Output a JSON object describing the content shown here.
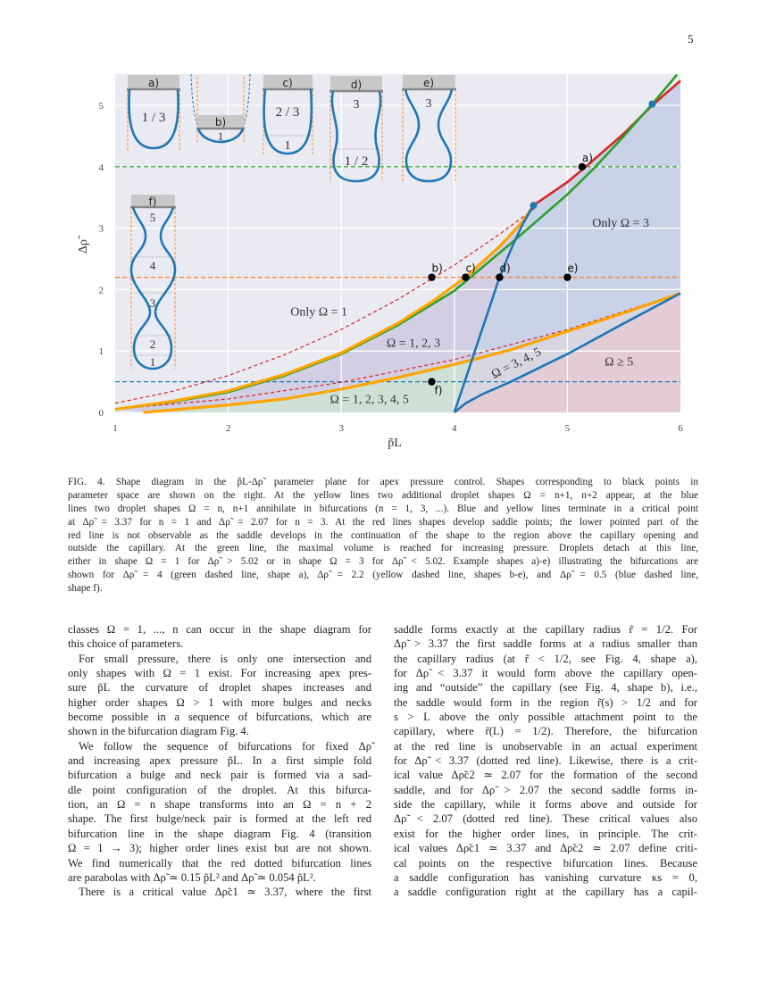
{
  "page_number": "5",
  "figure": {
    "insets": [
      {
        "label": "a)",
        "numbers": [
          "1 / 3"
        ]
      },
      {
        "label": "b)",
        "numbers": [
          "1"
        ]
      },
      {
        "label": "c)",
        "numbers": [
          "2 / 3",
          "1"
        ]
      },
      {
        "label": "d)",
        "numbers": [
          "3",
          "1 / 2"
        ]
      },
      {
        "label": "e)",
        "numbers": [
          "3"
        ]
      },
      {
        "label": "f)",
        "numbers": [
          "5",
          "4",
          "3",
          "2",
          "1"
        ]
      }
    ],
    "chart_data": {
      "type": "line",
      "title": "",
      "xlabel": "p̃L",
      "ylabel": "Δρ̃",
      "xlim": [
        1,
        6
      ],
      "ylim": [
        0,
        5.5
      ],
      "xticks": [
        "1",
        "2",
        "3",
        "4",
        "5",
        "6"
      ],
      "yticks": [
        "0",
        "1",
        "2",
        "3",
        "4",
        "5"
      ],
      "grid": true,
      "background": "#eaeaf2",
      "regions": [
        {
          "name": "only-omega-3",
          "color": "#c9d2e6"
        },
        {
          "name": "omega-ge-5",
          "color": "#e3ccd6"
        },
        {
          "name": "omega-3-4-5",
          "color": "#d8d6e0"
        },
        {
          "name": "omega-1-2-3",
          "color": "#d2cfe4"
        },
        {
          "name": "omega-1-5",
          "color": "#cfe1d6"
        }
      ],
      "series": [
        {
          "id": "red-upper-dashed",
          "color": "#d62728",
          "style": "dashed",
          "formula": "0.15 p^2",
          "points": [
            [
              1,
              0.15
            ],
            [
              1.5,
              0.34
            ],
            [
              2,
              0.6
            ],
            [
              2.5,
              0.94
            ],
            [
              3,
              1.35
            ],
            [
              3.5,
              1.84
            ],
            [
              4,
              2.4
            ],
            [
              4.4,
              2.9
            ],
            [
              4.7,
              3.31
            ]
          ]
        },
        {
          "id": "red-upper-solid",
          "color": "#d62728",
          "style": "solid",
          "points": [
            [
              4.7,
              3.37
            ],
            [
              5,
              3.75
            ],
            [
              5.13,
              3.95
            ],
            [
              5.5,
              4.54
            ],
            [
              5.75,
              5.0
            ],
            [
              6,
              5.4
            ]
          ]
        },
        {
          "id": "red-lower-dashed",
          "color": "#d62728",
          "style": "dashed",
          "formula": "0.054 p^2",
          "points": [
            [
              1,
              0.054
            ],
            [
              2,
              0.22
            ],
            [
              3,
              0.49
            ],
            [
              4,
              0.86
            ],
            [
              5,
              1.35
            ],
            [
              6,
              1.94
            ]
          ]
        },
        {
          "id": "green",
          "color": "#2ca02c",
          "style": "solid",
          "points": [
            [
              1,
              0.05
            ],
            [
              1.5,
              0.17
            ],
            [
              2,
              0.33
            ],
            [
              2.5,
              0.6
            ],
            [
              3,
              0.95
            ],
            [
              3.5,
              1.42
            ],
            [
              4,
              1.98
            ],
            [
              4.5,
              2.75
            ],
            [
              5,
              3.55
            ],
            [
              5.25,
              4.0
            ],
            [
              5.5,
              4.5
            ],
            [
              5.75,
              5.02
            ],
            [
              5.97,
              5.5
            ]
          ]
        },
        {
          "id": "yellow-upper",
          "color": "#ffa500",
          "style": "solid",
          "points": [
            [
              1,
              0.05
            ],
            [
              1.5,
              0.18
            ],
            [
              2,
              0.35
            ],
            [
              2.5,
              0.62
            ],
            [
              3,
              0.97
            ],
            [
              3.5,
              1.45
            ],
            [
              3.8,
              1.8
            ],
            [
              4.1,
              2.2
            ],
            [
              4.4,
              2.7
            ],
            [
              4.6,
              3.1
            ],
            [
              4.7,
              3.37
            ]
          ]
        },
        {
          "id": "yellow-lower",
          "color": "#ffa500",
          "style": "solid",
          "points": [
            [
              1.25,
              0
            ],
            [
              2,
              0.12
            ],
            [
              2.5,
              0.22
            ],
            [
              3,
              0.38
            ],
            [
              3.5,
              0.57
            ],
            [
              4,
              0.78
            ],
            [
              4.5,
              1.02
            ],
            [
              5,
              1.32
            ],
            [
              5.5,
              1.62
            ],
            [
              6,
              1.94
            ]
          ]
        },
        {
          "id": "blue-upper",
          "color": "#1f77b4",
          "style": "solid",
          "points": [
            [
              4,
              0
            ],
            [
              4.1,
              0.55
            ],
            [
              4.2,
              1.1
            ],
            [
              4.3,
              1.65
            ],
            [
              4.4,
              2.2
            ],
            [
              4.5,
              2.65
            ],
            [
              4.6,
              3.05
            ],
            [
              4.7,
              3.37
            ]
          ]
        },
        {
          "id": "blue-lower",
          "color": "#1f77b4",
          "style": "solid",
          "points": [
            [
              4,
              0
            ],
            [
              4.1,
              0.15
            ],
            [
              4.25,
              0.3
            ],
            [
              4.5,
              0.5
            ],
            [
              5,
              0.95
            ],
            [
              5.5,
              1.45
            ],
            [
              6,
              1.94
            ]
          ]
        }
      ],
      "hlines": [
        {
          "y": 4,
          "color": "#2ca02c",
          "style": "dashed"
        },
        {
          "y": 2.2,
          "color": "#ff7f0e",
          "style": "dashed"
        },
        {
          "y": 0.5,
          "color": "#1f77b4",
          "style": "dashed"
        }
      ],
      "critical_points": [
        [
          4.7,
          3.37
        ],
        [
          5.75,
          5.02
        ]
      ],
      "points": [
        {
          "label": "a)",
          "x": 5.13,
          "y": 4
        },
        {
          "label": "b)",
          "x": 3.8,
          "y": 2.2
        },
        {
          "label": "c)",
          "x": 4.1,
          "y": 2.2
        },
        {
          "label": "d)",
          "x": 4.4,
          "y": 2.2
        },
        {
          "label": "e)",
          "x": 5.0,
          "y": 2.2
        },
        {
          "label": "f)",
          "x": 3.8,
          "y": 0.5
        }
      ],
      "region_labels": [
        {
          "text": "Only Ω = 1",
          "x": 2.55,
          "y": 1.58
        },
        {
          "text": "Ω = 1, 2, 3",
          "x": 3.4,
          "y": 1.07
        },
        {
          "text": "Ω = 1, 2, 3, 4, 5",
          "x": 2.9,
          "y": 0.15
        },
        {
          "text": "Only Ω = 3",
          "x": 5.22,
          "y": 3.02
        },
        {
          "text": "Ω ≥ 5",
          "x": 5.33,
          "y": 0.76
        },
        {
          "text": "Ω = 3, 4, 5",
          "x": 4.35,
          "y": 0.55,
          "rotate": -27
        }
      ]
    }
  },
  "caption": {
    "lines": [
      "FIG. 4.     Shape diagram in the p̃L-Δρ̃ parameter plane for apex pressure control. Shapes corresponding to black points in",
      "parameter space are shown on the right. At the yellow lines two additional droplet shapes Ω = n+1, n+2 appear, at the blue",
      "lines two droplet shapes Ω = n, n+1 annihilate in bifurcations (n = 1, 3, ...). Blue and yellow lines terminate in a critical point",
      "at Δρ̃ = 3.37 for n = 1 and Δρ̃ = 2.07 for n = 3. At the red lines shapes develop saddle points; the lower pointed part of the",
      "red line is not observable as the saddle develops in the continuation of the shape to the region above the capillary opening and",
      "outside the capillary. At the green line, the maximal volume is reached for increasing pressure. Droplets detach at this line,",
      "either in shape Ω = 1 for Δρ̃ > 5.02 or in shape Ω = 3 for Δρ̃ < 5.02. Example shapes a)-e) illustrating the bifurcations are",
      "shown for Δρ̃ = 4 (green dashed line, shape a), Δρ̃ = 2.2 (yellow dashed line, shapes b-e), and Δρ̃ = 0.5 (blue dashed line,",
      "shape f)."
    ]
  },
  "left_column": {
    "lines": [
      "classes Ω = 1, ..., n can occur in the shape diagram for",
      "this choice of parameters.",
      "For small pressure, there is only one intersection and",
      "only shapes with Ω = 1 exist. For increasing apex pres-",
      "sure p̃L the curvature of droplet shapes increases and",
      "higher order shapes Ω > 1 with more bulges and necks",
      "become possible in a sequence of bifurcations, which are",
      "shown in the bifurcation diagram Fig. 4.",
      "We follow the sequence of bifurcations for fixed Δρ̃",
      "and increasing apex pressure p̃L. In a first simple fold",
      "bifurcation a bulge and neck pair is formed via a sad-",
      "dle point configuration of the droplet. At this bifurca-",
      "tion, an Ω = n shape transforms into an Ω = n + 2",
      "shape. The first bulge/neck pair is formed at the left red",
      "bifurcation line in the shape diagram Fig. 4 (transition",
      "Ω = 1 → 3); higher order lines exist but are not shown.",
      "We find numerically that the red dotted bifurcation lines",
      "are parabolas with Δρ̃ ≃ 0.15 p̃L² and Δρ̃ ≃ 0.054 p̃L².",
      "There is a critical value Δρ̃c1 ≃ 3.37, where the first"
    ]
  },
  "right_column": {
    "lines": [
      "saddle forms exactly at the capillary radius r̃ = 1/2. For",
      "Δρ̃ > 3.37 the first saddle forms at a radius smaller than",
      "the capillary radius (at r̃ < 1/2, see Fig. 4, shape a),",
      "for Δρ̃ < 3.37 it would form above the capillary open-",
      "ing and “outside” the capillary (see Fig. 4, shape b), i.e.,",
      "the saddle would form in the region r̃(s) > 1/2 and for",
      "s > L above the only possible attachment point to the",
      "capillary, where r̃(L) = 1/2). Therefore, the bifurcation",
      "at the red line is unobservable in an actual experiment",
      "for Δρ̃ < 3.37 (dotted red line). Likewise, there is a crit-",
      "ical value Δρ̃c2 ≃ 2.07 for the formation of the second",
      "saddle, and for Δρ̃ > 2.07 the second saddle forms in-",
      "side the capillary, while it forms above and outside for",
      "Δρ̃ < 2.07 (dotted red line). These critical values also",
      "exist for the higher order lines, in principle. The crit-",
      "ical values Δρ̃c1 ≃ 3.37 and Δρ̃c2 ≃ 2.07 define criti-",
      "cal points on the respective bifurcation lines. Because",
      "a saddle configuration has vanishing curvature κs = 0,",
      "a saddle configuration right at the capillary has a capil-"
    ]
  }
}
